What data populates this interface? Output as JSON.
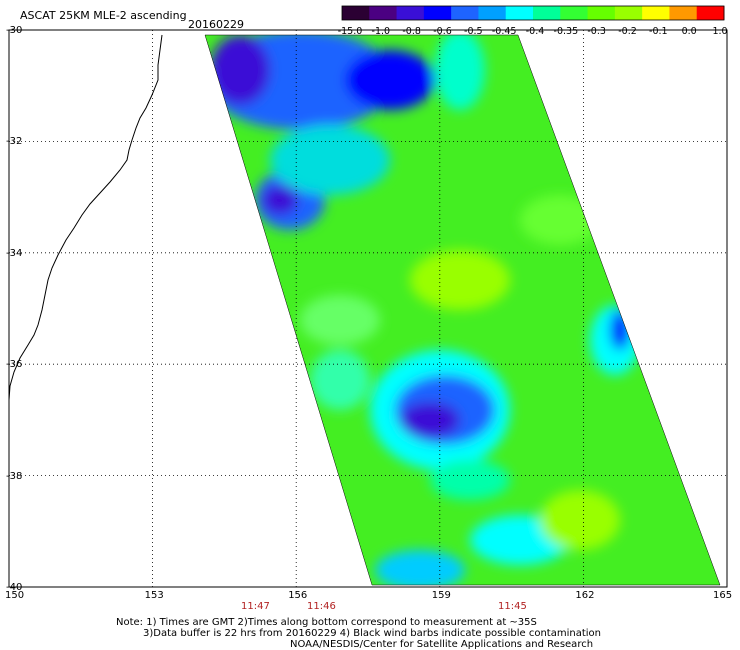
{
  "title": "ASCAT 25KM MLE-2 ascending",
  "date": "20160229",
  "colorbar": {
    "labels": [
      "-15.0",
      "-1.0",
      "-0.8",
      "-0.6",
      "-0.5",
      "-0.45",
      "-0.4",
      "-0.35",
      "-0.3",
      "-0.2",
      "-0.1",
      "0.0",
      "1.0"
    ],
    "colors": [
      "#2b0033",
      "#4b0082",
      "#3a0fd6",
      "#0000ff",
      "#1e64ff",
      "#00a0ff",
      "#00ffff",
      "#00ff99",
      "#33ff33",
      "#66ff00",
      "#99ff00",
      "#ffff00",
      "#ff9900",
      "#ff0000"
    ]
  },
  "lat_labels": [
    "-30",
    "-32",
    "-34",
    "-36",
    "-38",
    "-40"
  ],
  "lon_labels": [
    "150",
    "153",
    "156",
    "159",
    "162",
    "165"
  ],
  "times": [
    "11:47",
    "11:46",
    "11:45"
  ],
  "notes": [
    "Note: 1) Times are GMT 2)Times along bottom correspond to measurement at ~35S",
    "3)Data buffer is 22 hrs from 20160229 4) Black wind barbs indicate possible contamination",
    "NOAA/NESDIS/Center for Satellite Applications and Research"
  ]
}
